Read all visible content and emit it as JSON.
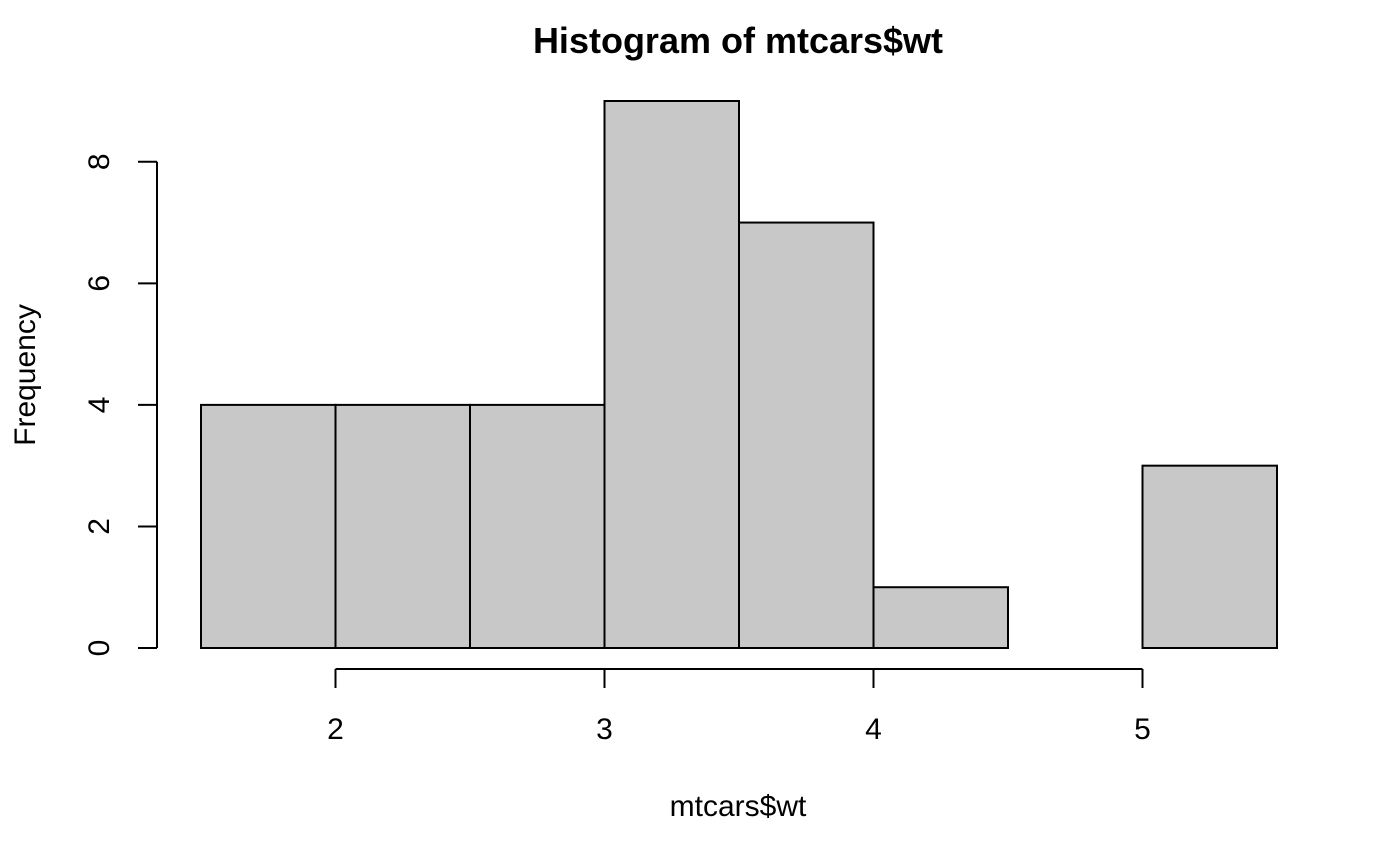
{
  "chart_data": {
    "type": "bar",
    "title": "Histogram of mtcars$wt",
    "xlabel": "mtcars$wt",
    "ylabel": "Frequency",
    "bins": [
      {
        "from": 1.5,
        "to": 2.0,
        "count": 4
      },
      {
        "from": 2.0,
        "to": 2.5,
        "count": 4
      },
      {
        "from": 2.5,
        "to": 3.0,
        "count": 4
      },
      {
        "from": 3.0,
        "to": 3.5,
        "count": 9
      },
      {
        "from": 3.5,
        "to": 4.0,
        "count": 7
      },
      {
        "from": 4.0,
        "to": 4.5,
        "count": 1
      },
      {
        "from": 4.5,
        "to": 5.0,
        "count": 0
      },
      {
        "from": 5.0,
        "to": 5.5,
        "count": 3
      }
    ],
    "x_ticks": [
      2,
      3,
      4,
      5
    ],
    "y_ticks": [
      0,
      2,
      4,
      6,
      8
    ],
    "xlim": [
      1.5,
      5.5
    ],
    "ylim": [
      0,
      9
    ],
    "grid": false,
    "legend": "none",
    "bar_color": "#c8c8c8",
    "edge_color": "#000000"
  }
}
